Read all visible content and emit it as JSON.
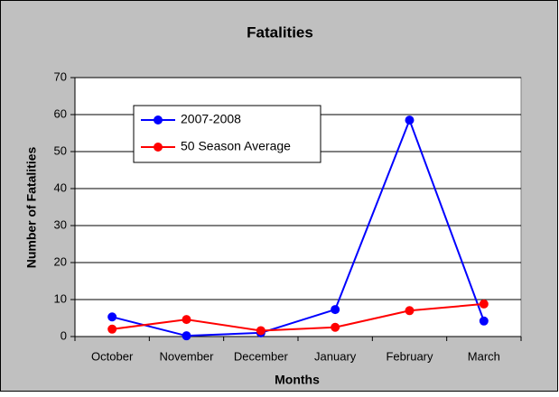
{
  "chart_data": {
    "type": "line",
    "title": "Fatalities",
    "x_label": "Months",
    "y_label": "Number of Fatalities",
    "categories": [
      "October",
      "November",
      "December",
      "January",
      "February",
      "March"
    ],
    "series": [
      {
        "name": "2007-2008",
        "color": "#0000ff",
        "values": [
          5.3,
          0.2,
          1,
          7.3,
          58.5,
          4.2
        ]
      },
      {
        "name": "50 Season Average",
        "color": "#ff0000",
        "values": [
          2,
          4.6,
          1.6,
          2.5,
          7,
          8.8
        ]
      }
    ],
    "ylim": [
      0,
      70
    ],
    "yticks": [
      0,
      10,
      20,
      30,
      40,
      50,
      60,
      70
    ],
    "grid": true,
    "legend": "upper left"
  }
}
